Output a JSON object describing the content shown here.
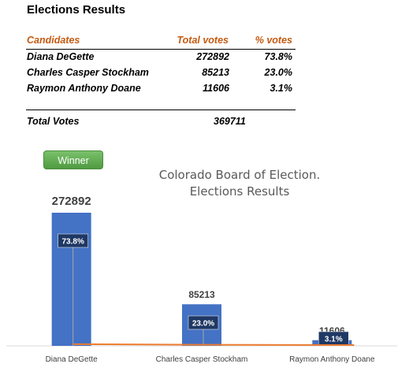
{
  "sheet": {
    "title": "Elections Results",
    "headers": {
      "candidate": "Candidates",
      "votes": "Total votes",
      "pct": "% votes"
    },
    "rows": [
      {
        "candidate": "Diana DeGette",
        "votes": "272892",
        "pct": "73.8%"
      },
      {
        "candidate": "Charles Casper Stockham",
        "votes": "85213",
        "pct": "23.0%"
      },
      {
        "candidate": "Raymon Anthony Doane",
        "votes": "11606",
        "pct": "3.1%"
      }
    ],
    "total_label": "Total Votes",
    "total_value": "369711"
  },
  "chart": {
    "winner_label": "Winner",
    "title_line1": "Colorado Board of Election.",
    "title_line2": "Elections Results"
  },
  "chart_data": {
    "type": "bar",
    "title": "Colorado Board of Election. Elections Results",
    "categories": [
      "Diana DeGette",
      "Charles Casper Stockham",
      "Raymon Anthony Doane"
    ],
    "series": [
      {
        "values": [
          272892,
          85213,
          11606
        ],
        "percent_labels": [
          "73.8%",
          "23.0%",
          "3.1%"
        ]
      }
    ],
    "line_series": {
      "values": [
        73.8,
        23.0,
        3.1
      ]
    },
    "ylim": [
      0,
      272892
    ],
    "grid": false,
    "legend": "none",
    "colors": {
      "bar": "#4472c4",
      "line": "#ed7d31",
      "label_box": "#1f3864",
      "winner_button": "#5aa548"
    }
  }
}
